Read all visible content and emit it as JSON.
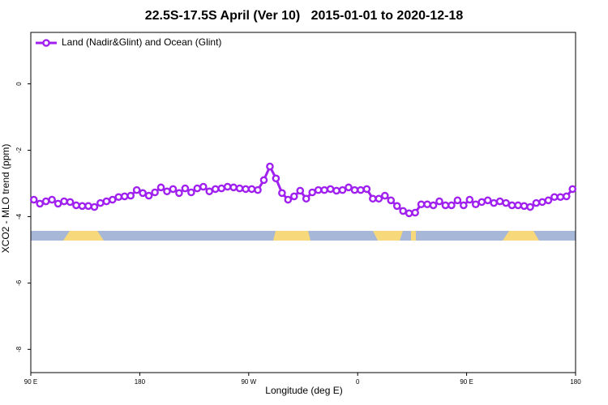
{
  "chart_data": {
    "type": "line",
    "title": "22.5S-17.5S April (Ver 10)   2015-01-01 to 2020-12-18",
    "xlabel": "Longitude (deg E)",
    "ylabel": "XCO2 - MLO trend (ppm)",
    "legend": "top-left",
    "xlim": [
      90,
      540
    ],
    "xticks": [
      {
        "value": 90,
        "label": "90 E"
      },
      180,
      {
        "value": 270,
        "label": "90 W"
      },
      {
        "value": 360,
        "label": "0"
      },
      {
        "value": 450,
        "label": "90 E"
      },
      {
        "value": 540,
        "label": "180"
      }
    ],
    "ylim": [
      -8.7,
      1.55
    ],
    "yticks": [
      0,
      -2,
      -4,
      -6,
      -8
    ],
    "x": [
      92.5,
      97.5,
      102.5,
      107.5,
      112.5,
      117.5,
      122.5,
      127.5,
      132.5,
      137.5,
      142.5,
      147.5,
      152.5,
      157.5,
      162.5,
      167.5,
      172.5,
      177.5,
      182.5,
      187.5,
      192.5,
      197.5,
      202.5,
      207.5,
      212.5,
      217.5,
      222.5,
      227.5,
      232.5,
      237.5,
      242.5,
      247.5,
      252.5,
      257.5,
      262.5,
      267.5,
      272.5,
      277.5,
      282.5,
      287.5,
      292.5,
      297.5,
      302.5,
      307.5,
      312.5,
      317.5,
      322.5,
      327.5,
      332.5,
      337.5,
      342.5,
      347.5,
      352.5,
      357.5,
      362.5,
      367.5,
      372.5,
      377.5,
      382.5,
      387.5,
      392.5,
      397.5,
      402.5,
      407.5,
      412.5,
      417.5,
      422.5,
      427.5,
      432.5,
      437.5,
      442.5,
      447.5,
      452.5,
      457.5,
      462.5,
      467.5,
      472.5,
      477.5,
      482.5,
      487.5,
      492.5,
      497.5,
      502.5,
      507.5,
      512.5,
      517.5,
      522.5,
      527.5,
      532.5,
      537.5
    ],
    "series": [
      {
        "name": "Land (Nadir&Glint) and Ocean (Glint)",
        "color": "#a020f0",
        "values": [
          -3.49,
          -3.61,
          -3.54,
          -3.49,
          -3.61,
          -3.54,
          -3.56,
          -3.66,
          -3.68,
          -3.68,
          -3.71,
          -3.59,
          -3.54,
          -3.49,
          -3.41,
          -3.39,
          -3.37,
          -3.2,
          -3.29,
          -3.37,
          -3.27,
          -3.12,
          -3.24,
          -3.17,
          -3.29,
          -3.15,
          -3.27,
          -3.15,
          -3.1,
          -3.24,
          -3.17,
          -3.15,
          -3.1,
          -3.12,
          -3.15,
          -3.17,
          -3.17,
          -3.2,
          -2.9,
          -2.49,
          -2.85,
          -3.29,
          -3.49,
          -3.39,
          -3.22,
          -3.46,
          -3.27,
          -3.2,
          -3.2,
          -3.17,
          -3.22,
          -3.2,
          -3.12,
          -3.2,
          -3.2,
          -3.17,
          -3.46,
          -3.46,
          -3.37,
          -3.51,
          -3.68,
          -3.83,
          -3.9,
          -3.88,
          -3.63,
          -3.63,
          -3.66,
          -3.54,
          -3.66,
          -3.66,
          -3.51,
          -3.66,
          -3.49,
          -3.63,
          -3.56,
          -3.51,
          -3.59,
          -3.54,
          -3.59,
          -3.66,
          -3.66,
          -3.68,
          -3.71,
          -3.59,
          -3.56,
          -3.51,
          -3.41,
          -3.41,
          -3.39,
          -3.17
        ]
      }
    ]
  }
}
